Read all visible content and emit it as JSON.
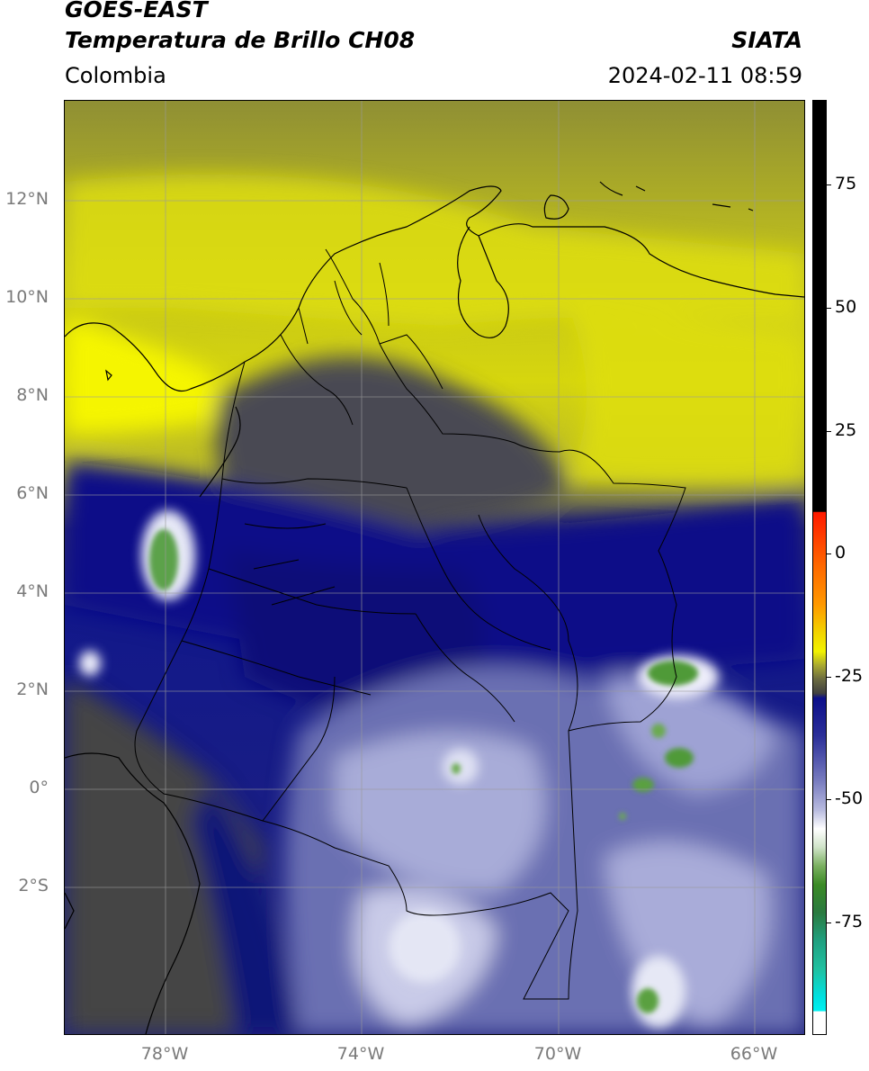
{
  "header": {
    "line1": "GOES-EAST",
    "line2": "Temperatura de Brillo CH08",
    "region": "Colombia",
    "organization": "SIATA",
    "datetime": "2024-02-11 08:59"
  },
  "map": {
    "lat_labels": [
      "12°N",
      "10°N",
      "8°N",
      "6°N",
      "4°N",
      "2°N",
      "0°",
      "2°S"
    ],
    "lon_labels": [
      "78°W",
      "74°W",
      "70°W",
      "66°W"
    ],
    "grid": true
  },
  "colorbar": {
    "ticks": [
      "75",
      "50",
      "25",
      "0",
      "-25",
      "-50",
      "-75"
    ],
    "colors": {
      "black": "#000000",
      "red": "#ff1a00",
      "orange": "#ff9900",
      "yellow": "#f2f200",
      "olive": "#8a8a30",
      "gray": "#505050",
      "navy": "#0c0f8a",
      "lavender": "#b8bbdf",
      "white": "#ffffff",
      "green": "#3b8a25",
      "teal": "#20c0a0",
      "cyan": "#00f0f0"
    }
  }
}
